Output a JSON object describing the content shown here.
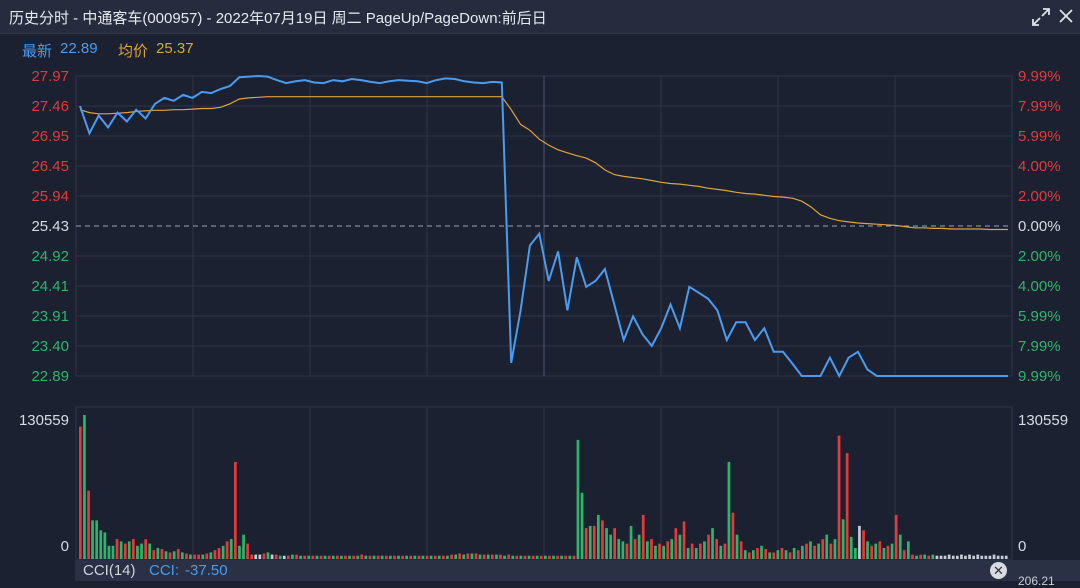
{
  "window": {
    "title": "历史分时 - 中通客车(000957) - 2022年07月19日 周二 PageUp/PageDown:前后日",
    "expand_icon": "expand-arrows-icon",
    "close_icon": "close-icon"
  },
  "info": {
    "latest_label": "最新",
    "latest_value": "22.89",
    "avg_label": "均价",
    "avg_value": "25.37",
    "latest_color": "#4a9cf0",
    "avg_color": "#e0a33a"
  },
  "footer": {
    "indicator": "CCI(14)",
    "cci_label": "CCI:",
    "cci_value": "-37.50",
    "close_glyph": "✕",
    "cut_text": "206.21"
  },
  "colors": {
    "up": "#e23b3b",
    "down": "#2fb56a",
    "neutral": "#c8ccd6",
    "price": "#4a9cf0",
    "avg": "#e0a33a",
    "grid": "#2e3546"
  },
  "chart_data": [
    {
      "type": "line",
      "series": [
        {
          "name": "最新",
          "y": [
            27.46,
            27.0,
            27.3,
            27.1,
            27.35,
            27.2,
            27.4,
            27.25,
            27.5,
            27.6,
            27.55,
            27.65,
            27.6,
            27.7,
            27.68,
            27.75,
            27.8,
            27.95,
            27.96,
            27.97,
            27.96,
            27.9,
            27.85,
            27.88,
            27.9,
            27.86,
            27.85,
            27.9,
            27.88,
            27.92,
            27.9,
            27.87,
            27.85,
            27.88,
            27.9,
            27.89,
            27.88,
            27.85,
            27.9,
            27.93,
            27.92,
            27.88,
            27.86,
            27.85,
            27.87,
            27.86,
            23.11,
            24.0,
            25.1,
            25.3,
            24.5,
            25.0,
            24.0,
            24.9,
            24.4,
            24.5,
            24.7,
            24.1,
            23.5,
            23.9,
            23.6,
            23.4,
            23.7,
            24.1,
            23.7,
            24.4,
            24.3,
            24.2,
            24.0,
            23.5,
            23.8,
            23.8,
            23.5,
            23.7,
            23.3,
            23.3,
            23.1,
            22.89,
            22.89,
            22.89,
            23.2,
            22.89,
            23.2,
            23.3,
            23.0,
            22.89,
            22.89,
            22.89,
            22.89,
            22.89,
            22.89,
            22.89,
            22.89,
            22.89,
            22.89,
            22.89,
            22.89,
            22.89,
            22.89,
            22.89
          ]
        },
        {
          "name": "均价",
          "y": [
            27.4,
            27.35,
            27.33,
            27.33,
            27.34,
            27.35,
            27.37,
            27.38,
            27.39,
            27.39,
            27.4,
            27.4,
            27.41,
            27.42,
            27.42,
            27.44,
            27.5,
            27.58,
            27.6,
            27.61,
            27.62,
            27.62,
            27.62,
            27.62,
            27.62,
            27.62,
            27.62,
            27.62,
            27.62,
            27.62,
            27.62,
            27.62,
            27.62,
            27.62,
            27.62,
            27.62,
            27.62,
            27.62,
            27.62,
            27.62,
            27.62,
            27.62,
            27.62,
            27.62,
            27.62,
            27.62,
            27.4,
            27.15,
            27.05,
            26.9,
            26.8,
            26.72,
            26.67,
            26.62,
            26.58,
            26.5,
            26.38,
            26.3,
            26.27,
            26.25,
            26.23,
            26.2,
            26.17,
            26.15,
            26.14,
            26.12,
            26.1,
            26.07,
            26.05,
            26.03,
            26.0,
            25.98,
            25.97,
            25.95,
            25.93,
            25.92,
            25.9,
            25.85,
            25.75,
            25.62,
            25.56,
            25.52,
            25.5,
            25.48,
            25.47,
            25.46,
            25.45,
            25.44,
            25.42,
            25.4,
            25.4,
            25.39,
            25.39,
            25.38,
            25.38,
            25.38,
            25.38,
            25.37,
            25.37,
            25.37
          ]
        }
      ],
      "ylim": [
        22.89,
        27.97
      ],
      "y_ticks_left": [
        "27.97",
        "27.46",
        "26.95",
        "26.45",
        "25.94",
        "25.43",
        "24.92",
        "24.41",
        "23.91",
        "23.40",
        "22.89"
      ],
      "y_ticks_right": [
        "9.99%",
        "7.99%",
        "5.99%",
        "4.00%",
        "2.00%",
        "0.00%",
        "2.00%",
        "4.00%",
        "5.99%",
        "7.99%",
        "9.99%"
      ],
      "reference_line": 25.43,
      "grid": true
    },
    {
      "type": "bar",
      "label": "volume",
      "ylim": [
        0,
        130559
      ],
      "y_ticks": [
        "130559",
        "0"
      ],
      "values": [
        120000,
        130559,
        62000,
        35000,
        35000,
        26000,
        24000,
        12000,
        12000,
        18000,
        16000,
        14000,
        16000,
        18000,
        12000,
        14000,
        18000,
        14000,
        8000,
        10000,
        9000,
        7000,
        6000,
        7000,
        9000,
        6000,
        5000,
        4000,
        4000,
        4000,
        4000,
        5000,
        6000,
        8000,
        10000,
        12000,
        16000,
        18000,
        88000,
        12000,
        22000,
        14000,
        4000,
        4000,
        4000,
        5000,
        6000,
        4000,
        4000,
        3000,
        3000,
        3000,
        4000,
        4000,
        3000,
        3000,
        3000,
        3000,
        3000,
        3000,
        3000,
        3000,
        3000,
        3000,
        3000,
        3000,
        3000,
        3000,
        3000,
        4000,
        3000,
        3000,
        3000,
        3000,
        3000,
        3000,
        3000,
        3000,
        3000,
        3000,
        3000,
        3000,
        3000,
        3000,
        3000,
        3000,
        3000,
        3000,
        3000,
        3000,
        3000,
        4000,
        4000,
        5000,
        4000,
        5000,
        5000,
        5000,
        4000,
        4000,
        4000,
        4000,
        4000,
        4000,
        3000,
        4000,
        3000,
        3000,
        3000,
        3000,
        3000,
        3000,
        3000,
        3000,
        3000,
        3000,
        3000,
        3000,
        3000,
        3000,
        3000,
        3000,
        108000,
        60000,
        28000,
        30000,
        30000,
        40000,
        35000,
        28000,
        22000,
        28000,
        18000,
        16000,
        14000,
        30000,
        18000,
        22000,
        40000,
        16000,
        18000,
        12000,
        14000,
        12000,
        16000,
        18000,
        28000,
        22000,
        34000,
        10000,
        14000,
        10000,
        14000,
        16000,
        22000,
        28000,
        18000,
        12000,
        14000,
        88000,
        42000,
        22000,
        16000,
        8000,
        6000,
        8000,
        10000,
        12000,
        9000,
        6000,
        6000,
        8000,
        10000,
        8000,
        6000,
        10000,
        8000,
        12000,
        14000,
        16000,
        12000,
        14000,
        18000,
        22000,
        14000,
        18000,
        112000,
        36000,
        96000,
        20000,
        10000,
        30000,
        26000,
        16000,
        12000,
        14000,
        16000,
        10000,
        12000,
        14000,
        40000,
        22000,
        8000,
        16000,
        4000,
        3000,
        4000,
        4000,
        3000,
        4000,
        3000,
        3000,
        3000,
        4000,
        3000,
        3000,
        4000,
        3000,
        4000,
        3000,
        4000,
        3000,
        3000,
        3000,
        4000,
        3000,
        3000,
        3000
      ],
      "directions": [
        "u",
        "d",
        "u",
        "d",
        "d",
        "d",
        "d",
        "d",
        "d",
        "u",
        "d",
        "u",
        "d",
        "u",
        "d",
        "d",
        "u",
        "d",
        "u",
        "d",
        "u",
        "d",
        "u",
        "d",
        "u",
        "d",
        "u",
        "d",
        "u",
        "u",
        "d",
        "u",
        "d",
        "u",
        "u",
        "d",
        "u",
        "d",
        "u",
        "d",
        "d",
        "u",
        "u",
        "n",
        "n",
        "u",
        "d",
        "n",
        "u",
        "d",
        "n",
        "u",
        "d",
        "u",
        "d",
        "u",
        "d",
        "u",
        "d",
        "u",
        "d",
        "u",
        "d",
        "u",
        "d",
        "u",
        "d",
        "u",
        "d",
        "u",
        "d",
        "u",
        "d",
        "u",
        "d",
        "u",
        "d",
        "u",
        "d",
        "u",
        "d",
        "u",
        "d",
        "u",
        "d",
        "u",
        "d",
        "u",
        "d",
        "u",
        "d",
        "u",
        "d",
        "u",
        "d",
        "u",
        "d",
        "u",
        "d",
        "u",
        "d",
        "u",
        "d",
        "u",
        "d",
        "u",
        "d",
        "u",
        "d",
        "u",
        "d",
        "u",
        "d",
        "u",
        "d",
        "u",
        "d",
        "u",
        "d",
        "u",
        "d",
        "u",
        "d",
        "d",
        "u",
        "d",
        "u",
        "d",
        "u",
        "d",
        "d",
        "u",
        "d",
        "d",
        "u",
        "d",
        "u",
        "d",
        "u",
        "d",
        "u",
        "d",
        "u",
        "d",
        "u",
        "d",
        "u",
        "d",
        "u",
        "d",
        "u",
        "d",
        "u",
        "d",
        "u",
        "d",
        "u",
        "d",
        "u",
        "d",
        "u",
        "d",
        "u",
        "d",
        "u",
        "d",
        "u",
        "d",
        "u",
        "d",
        "u",
        "d",
        "u",
        "d",
        "u",
        "d",
        "u",
        "d",
        "u",
        "d",
        "u",
        "d",
        "u",
        "d",
        "u",
        "d",
        "u",
        "d",
        "u",
        "d",
        "d",
        "n",
        "u",
        "d",
        "u",
        "d",
        "u",
        "d",
        "u",
        "d",
        "u",
        "d",
        "u",
        "d",
        "u",
        "d",
        "u",
        "d",
        "u",
        "d",
        "n",
        "n",
        "n",
        "n",
        "n",
        "n",
        "n",
        "n",
        "n",
        "n",
        "n",
        "n",
        "n",
        "n",
        "n",
        "n",
        "n",
        "n",
        "n",
        "n"
      ]
    }
  ]
}
